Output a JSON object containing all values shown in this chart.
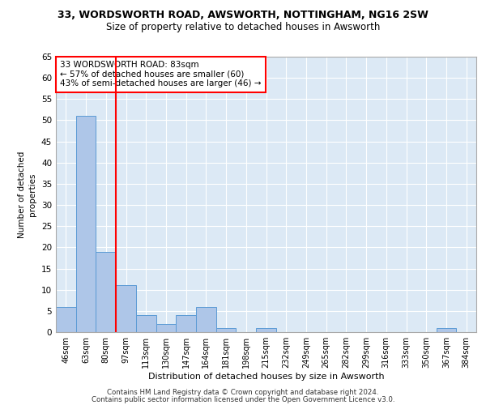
{
  "title1": "33, WORDSWORTH ROAD, AWSWORTH, NOTTINGHAM, NG16 2SW",
  "title2": "Size of property relative to detached houses in Awsworth",
  "xlabel": "Distribution of detached houses by size in Awsworth",
  "ylabel": "Number of detached\nproperties",
  "bins": [
    "46sqm",
    "63sqm",
    "80sqm",
    "97sqm",
    "113sqm",
    "130sqm",
    "147sqm",
    "164sqm",
    "181sqm",
    "198sqm",
    "215sqm",
    "232sqm",
    "249sqm",
    "265sqm",
    "282sqm",
    "299sqm",
    "316sqm",
    "333sqm",
    "350sqm",
    "367sqm",
    "384sqm"
  ],
  "values": [
    6,
    51,
    19,
    11,
    4,
    2,
    4,
    6,
    1,
    0,
    1,
    0,
    0,
    0,
    0,
    0,
    0,
    0,
    0,
    1,
    0
  ],
  "bar_color": "#aec6e8",
  "bar_edge_color": "#5b9bd5",
  "red_line_index": 2,
  "annotation_title": "33 WORDSWORTH ROAD: 83sqm",
  "annotation_line2": "← 57% of detached houses are smaller (60)",
  "annotation_line3": "43% of semi-detached houses are larger (46) →",
  "ylim": [
    0,
    65
  ],
  "yticks": [
    0,
    5,
    10,
    15,
    20,
    25,
    30,
    35,
    40,
    45,
    50,
    55,
    60,
    65
  ],
  "plot_bg_color": "#dce9f5",
  "grid_color": "#ffffff",
  "footer1": "Contains HM Land Registry data © Crown copyright and database right 2024.",
  "footer2": "Contains public sector information licensed under the Open Government Licence v3.0."
}
